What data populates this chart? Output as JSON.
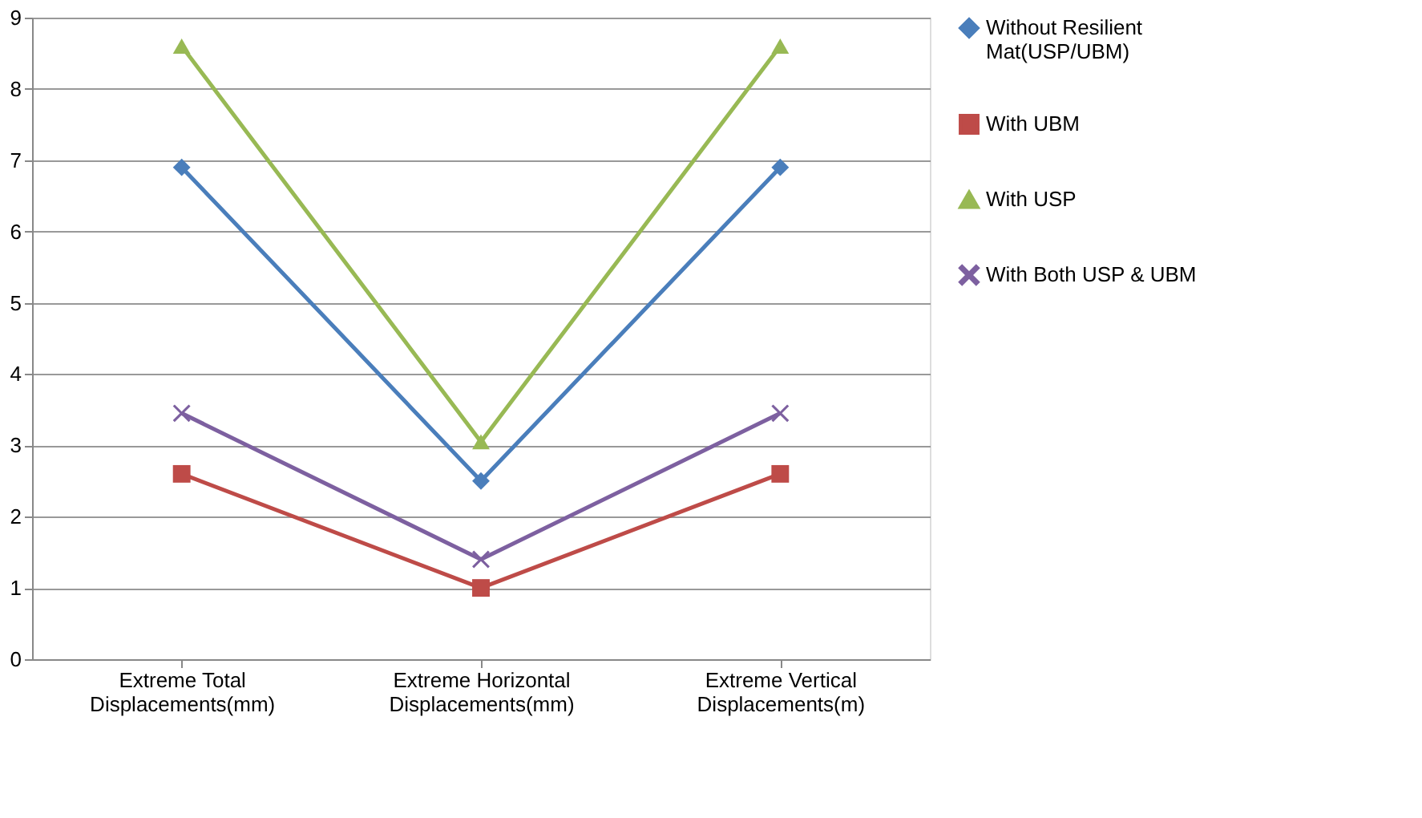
{
  "chart_data": {
    "type": "line",
    "categories": [
      "Extreme Total Displacements(mm)",
      "Extreme Horizontal Displacements(mm)",
      "Extreme Vertical Displacements(m)"
    ],
    "series": [
      {
        "name": "Without Resilient Mat(USP/UBM)",
        "color": "#4a7ebb",
        "marker": "diamond",
        "values": [
          6.9,
          2.5,
          6.9
        ]
      },
      {
        "name": "With UBM",
        "color": "#be4b48",
        "marker": "square",
        "values": [
          2.6,
          1.0,
          2.6
        ]
      },
      {
        "name": "With USP",
        "color": "#98b954",
        "marker": "triangle",
        "values": [
          8.6,
          3.05,
          8.6
        ]
      },
      {
        "name": "With Both USP & UBM",
        "color": "#7d60a0",
        "marker": "cross",
        "values": [
          3.45,
          1.4,
          3.45
        ]
      }
    ],
    "ylim": [
      0,
      9
    ],
    "yticks": [
      0,
      1,
      2,
      3,
      4,
      5,
      6,
      7,
      8,
      9
    ],
    "grid": "y",
    "legend": "right",
    "line_style": "solid"
  }
}
